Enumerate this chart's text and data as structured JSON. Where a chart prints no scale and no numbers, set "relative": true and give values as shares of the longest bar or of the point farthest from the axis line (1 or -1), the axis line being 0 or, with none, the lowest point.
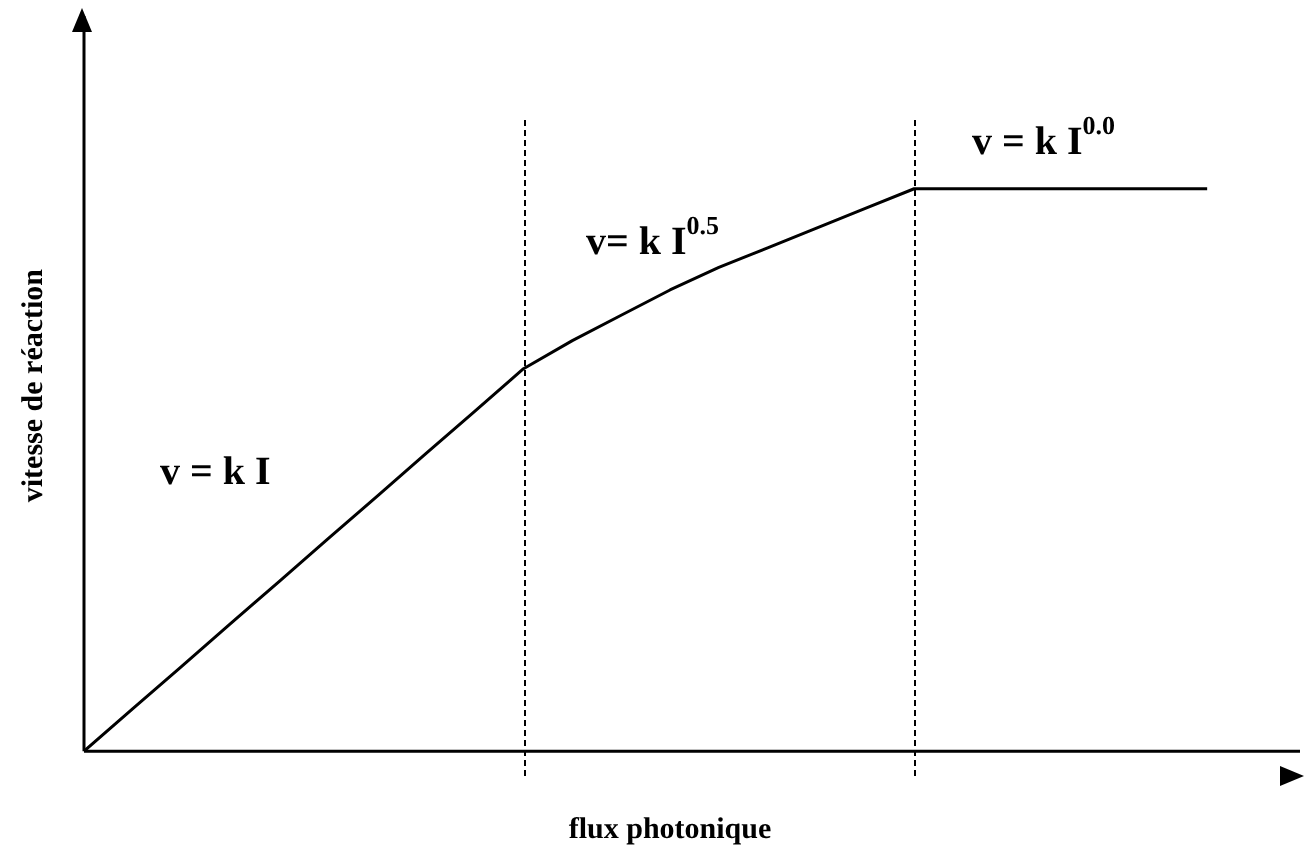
{
  "chart_data": {
    "type": "line",
    "relative": true,
    "xlabel": "flux photonique",
    "ylabel": "vitesse de réaction",
    "categories": [
      null,
      null,
      null,
      null,
      null,
      null,
      null,
      null,
      null,
      null,
      null,
      null,
      null,
      null,
      null,
      null,
      null,
      null,
      null,
      null,
      null,
      null,
      null,
      null,
      null
    ],
    "series": [
      {
        "color": "#000000",
        "values": [
          0,
          0.0756,
          0.151,
          0.227,
          0.302,
          0.378,
          0.453,
          0.529,
          0.604,
          0.68,
          0.73,
          0.775,
          0.82,
          0.86,
          0.895,
          0.93,
          0.965,
          1,
          1,
          1,
          1,
          1,
          1,
          1,
          null
        ]
      }
    ],
    "annotations": [
      "v = k I",
      "v= k I$^{0.5}$",
      "v = k I$^{0.0}$"
    ],
    "marker": "none",
    "line_style": "solid",
    "grid": false,
    "legend": false
  }
}
